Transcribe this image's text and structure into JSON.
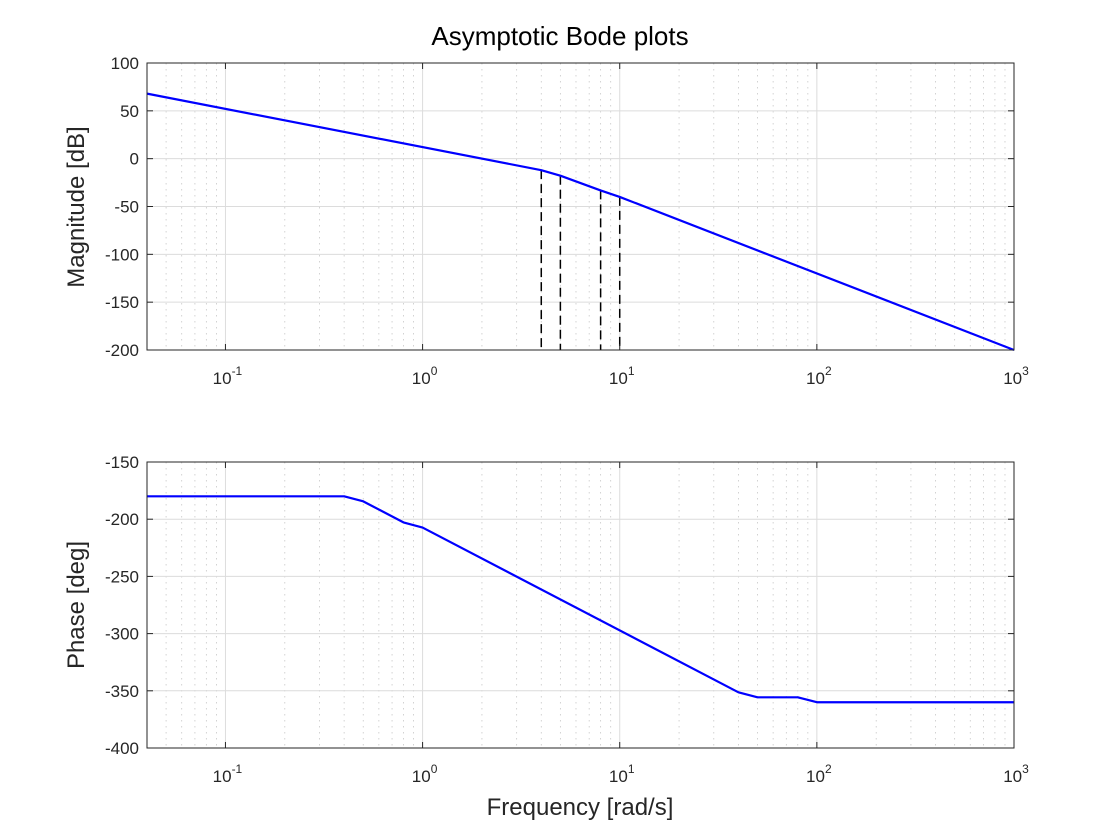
{
  "chart_data": [
    {
      "type": "line",
      "title": "Asymptotic Bode plots",
      "xlabel": "",
      "ylabel": "Magnitude [dB]",
      "xscale": "log",
      "xlim": [
        0.04,
        1000
      ],
      "ylim": [
        -200,
        100
      ],
      "xticks": [
        0.1,
        1,
        10,
        100,
        1000
      ],
      "xtick_labels": [
        {
          "base": "10",
          "exp": "-1"
        },
        {
          "base": "10",
          "exp": "0"
        },
        {
          "base": "10",
          "exp": "1"
        },
        {
          "base": "10",
          "exp": "2"
        },
        {
          "base": "10",
          "exp": "3"
        }
      ],
      "yticks": [
        100,
        50,
        0,
        -50,
        -100,
        -150,
        -200
      ],
      "ytick_labels": [
        "100",
        "50",
        "0",
        "-50",
        "-100",
        "-150",
        "-200"
      ],
      "grid": true,
      "series": [
        {
          "color": "#0000ff",
          "x": [
            0.04,
            4,
            5,
            8,
            10,
            1000
          ],
          "y": [
            68,
            -12,
            -17.8,
            -33.2,
            -40,
            -200
          ]
        }
      ],
      "vertical_markers": [
        {
          "x": 4,
          "y_top": -12
        },
        {
          "x": 5,
          "y_top": -17.8
        },
        {
          "x": 8,
          "y_top": -33.2
        },
        {
          "x": 10,
          "y_top": -40
        }
      ]
    },
    {
      "type": "line",
      "title": "",
      "xlabel": "Frequency [rad/s]",
      "ylabel": "Phase [deg]",
      "xscale": "log",
      "xlim": [
        0.04,
        1000
      ],
      "ylim": [
        -400,
        -150
      ],
      "xticks": [
        0.1,
        1,
        10,
        100,
        1000
      ],
      "xtick_labels": [
        {
          "base": "10",
          "exp": "-1"
        },
        {
          "base": "10",
          "exp": "0"
        },
        {
          "base": "10",
          "exp": "1"
        },
        {
          "base": "10",
          "exp": "2"
        },
        {
          "base": "10",
          "exp": "3"
        }
      ],
      "yticks": [
        -150,
        -200,
        -250,
        -300,
        -350,
        -400
      ],
      "ytick_labels": [
        "-150",
        "-200",
        "-250",
        "-300",
        "-350",
        "-400"
      ],
      "grid": true,
      "series": [
        {
          "color": "#0000ff",
          "x": [
            0.04,
            0.4,
            0.5,
            0.8,
            1,
            40,
            50,
            80,
            100,
            1000
          ],
          "y": [
            -180,
            -180,
            -184.4,
            -202.8,
            -207.3,
            -351.3,
            -355.7,
            -355.7,
            -360,
            -360
          ]
        }
      ],
      "vertical_markers": []
    }
  ]
}
